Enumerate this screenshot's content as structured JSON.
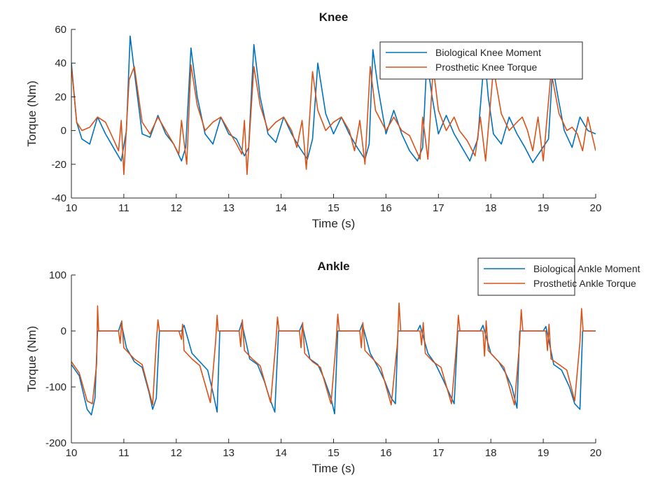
{
  "chart_data": [
    {
      "type": "line",
      "title": "Knee",
      "xlabel": "Time (s)",
      "ylabel": "Torque (Nm)",
      "xlim": [
        10,
        20
      ],
      "ylim": [
        -40,
        60
      ],
      "xticks": [
        10,
        11,
        12,
        13,
        14,
        15,
        16,
        17,
        18,
        19,
        20
      ],
      "yticks": [
        -40,
        -20,
        0,
        20,
        40,
        60
      ],
      "grid": false,
      "legend_position": "top-right",
      "series": [
        {
          "name": "Biological Knee Moment",
          "color": "#0072BD",
          "x": [
            10.0,
            10.1,
            10.2,
            10.35,
            10.5,
            10.65,
            10.8,
            10.95,
            11.05,
            11.12,
            11.22,
            11.35,
            11.5,
            11.65,
            11.8,
            11.95,
            12.1,
            12.18,
            12.28,
            12.4,
            12.55,
            12.7,
            12.85,
            13.0,
            13.15,
            13.3,
            13.38,
            13.48,
            13.6,
            13.75,
            13.9,
            14.05,
            14.2,
            14.35,
            14.5,
            14.6,
            14.7,
            14.85,
            15.0,
            15.15,
            15.3,
            15.45,
            15.6,
            15.68,
            15.75,
            15.85,
            16.0,
            16.15,
            16.3,
            16.45,
            16.6,
            16.7,
            16.78,
            16.88,
            17.0,
            17.15,
            17.3,
            17.45,
            17.6,
            17.75,
            17.88,
            17.95,
            18.05,
            18.2,
            18.35,
            18.5,
            18.65,
            18.8,
            18.95,
            19.1,
            19.18,
            19.28,
            19.4,
            19.55,
            19.7,
            19.85,
            20.0
          ],
          "y": [
            40,
            5,
            -5,
            -8,
            8,
            -2,
            -10,
            -18,
            0,
            56,
            30,
            -2,
            -4,
            9,
            -2,
            -8,
            -18,
            -10,
            49,
            20,
            -2,
            -8,
            8,
            -2,
            -5,
            -15,
            -10,
            51,
            20,
            -2,
            -7,
            8,
            -2,
            -10,
            -17,
            -5,
            40,
            10,
            -2,
            8,
            -2,
            -10,
            -17,
            -8,
            48,
            25,
            -2,
            12,
            -2,
            -12,
            -18,
            -10,
            42,
            20,
            -2,
            9,
            -2,
            -10,
            -18,
            -5,
            45,
            20,
            -2,
            -8,
            8,
            -2,
            -10,
            -19,
            -12,
            -5,
            38,
            20,
            0,
            -10,
            8,
            0,
            -2
          ]
        },
        {
          "name": "Prosthetic Knee Torque",
          "color": "#D95319",
          "x": [
            10.0,
            10.1,
            10.2,
            10.35,
            10.5,
            10.65,
            10.8,
            10.9,
            10.95,
            11.0,
            11.1,
            11.2,
            11.35,
            11.5,
            11.65,
            11.8,
            11.95,
            12.05,
            12.1,
            12.2,
            12.28,
            12.4,
            12.55,
            12.7,
            12.85,
            13.0,
            13.15,
            13.25,
            13.3,
            13.35,
            13.48,
            13.6,
            13.75,
            13.9,
            14.05,
            14.2,
            14.3,
            14.4,
            14.48,
            14.6,
            14.7,
            14.85,
            15.0,
            15.15,
            15.3,
            15.4,
            15.5,
            15.6,
            15.7,
            15.8,
            16.0,
            16.15,
            16.3,
            16.45,
            16.55,
            16.65,
            16.7,
            16.8,
            16.9,
            17.0,
            17.15,
            17.3,
            17.4,
            17.55,
            17.7,
            17.8,
            17.9,
            18.05,
            18.2,
            18.35,
            18.5,
            18.6,
            18.7,
            18.8,
            18.9,
            19.0,
            19.15,
            19.3,
            19.45,
            19.55,
            19.65,
            19.75,
            19.85,
            20.0
          ],
          "y": [
            38,
            5,
            0,
            2,
            8,
            5,
            -5,
            -12,
            6,
            -26,
            30,
            38,
            5,
            -2,
            8,
            0,
            -8,
            -14,
            6,
            -20,
            39,
            15,
            0,
            5,
            8,
            0,
            -8,
            -14,
            6,
            -26,
            38,
            15,
            0,
            5,
            8,
            0,
            -10,
            6,
            -23,
            35,
            12,
            0,
            5,
            8,
            0,
            -12,
            6,
            -20,
            38,
            12,
            0,
            8,
            0,
            -3,
            -10,
            -17,
            8,
            -17,
            38,
            12,
            0,
            8,
            0,
            -6,
            -15,
            8,
            -18,
            37,
            10,
            0,
            5,
            8,
            0,
            -12,
            8,
            -18,
            35,
            10,
            0,
            2,
            -2,
            -12,
            8,
            -12
          ]
        }
      ]
    },
    {
      "type": "line",
      "title": "Ankle",
      "xlabel": "Time (s)",
      "ylabel": "Torque (Nm)",
      "xlim": [
        10,
        20
      ],
      "ylim": [
        -200,
        100
      ],
      "xticks": [
        10,
        11,
        12,
        13,
        14,
        15,
        16,
        17,
        18,
        19,
        20
      ],
      "yticks": [
        -200,
        -100,
        0,
        100
      ],
      "grid": false,
      "legend_position": "top-right",
      "series": [
        {
          "name": "Biological Ankle Moment",
          "color": "#0072BD",
          "x": [
            10.0,
            10.15,
            10.3,
            10.38,
            10.45,
            10.5,
            10.9,
            10.95,
            11.05,
            11.2,
            11.35,
            11.48,
            11.55,
            11.62,
            11.68,
            12.1,
            12.15,
            12.3,
            12.45,
            12.6,
            12.7,
            12.78,
            12.83,
            13.2,
            13.25,
            13.4,
            13.55,
            13.68,
            13.78,
            13.88,
            13.95,
            14.35,
            14.4,
            14.55,
            14.7,
            14.82,
            14.95,
            15.02,
            15.08,
            15.5,
            15.55,
            15.7,
            15.85,
            15.98,
            16.1,
            16.18,
            16.23,
            16.6,
            16.65,
            16.8,
            16.95,
            17.08,
            17.2,
            17.3,
            17.37,
            17.8,
            17.85,
            18.0,
            18.15,
            18.28,
            18.4,
            18.5,
            18.55,
            19.0,
            19.05,
            19.2,
            19.35,
            19.5,
            19.6,
            19.7,
            19.75,
            20.0
          ],
          "y": [
            -60,
            -80,
            -140,
            -150,
            -120,
            0,
            0,
            15,
            -30,
            -55,
            -65,
            -110,
            -140,
            -120,
            0,
            0,
            10,
            -40,
            -55,
            -70,
            -110,
            -145,
            0,
            0,
            15,
            -50,
            -60,
            -90,
            -120,
            -145,
            0,
            0,
            12,
            -50,
            -60,
            -85,
            -120,
            -148,
            0,
            0,
            12,
            -40,
            -65,
            -90,
            -120,
            -130,
            0,
            0,
            10,
            -40,
            -60,
            -85,
            -110,
            -130,
            0,
            0,
            10,
            -40,
            -55,
            -75,
            -100,
            -138,
            0,
            0,
            8,
            -60,
            -70,
            -100,
            -130,
            -140,
            0,
            0
          ]
        },
        {
          "name": "Prosthetic Ankle Torque",
          "color": "#D95319",
          "x": [
            10.0,
            10.15,
            10.3,
            10.4,
            10.48,
            10.5,
            10.52,
            10.9,
            10.93,
            10.96,
            11.0,
            11.2,
            11.35,
            11.55,
            11.62,
            11.65,
            11.68,
            12.05,
            12.1,
            12.12,
            12.15,
            12.3,
            12.45,
            12.65,
            12.75,
            12.78,
            12.8,
            13.2,
            13.23,
            13.26,
            13.3,
            13.45,
            13.6,
            13.8,
            13.9,
            13.93,
            13.96,
            14.35,
            14.38,
            14.41,
            14.45,
            14.6,
            14.75,
            14.95,
            15.05,
            15.08,
            15.11,
            15.5,
            15.53,
            15.56,
            15.6,
            15.75,
            15.9,
            16.1,
            16.22,
            16.25,
            16.28,
            16.65,
            16.68,
            16.71,
            16.75,
            16.9,
            17.05,
            17.25,
            17.35,
            17.38,
            17.41,
            17.85,
            17.88,
            17.91,
            17.95,
            18.1,
            18.25,
            18.45,
            18.55,
            18.58,
            18.61,
            19.05,
            19.08,
            19.11,
            19.15,
            19.3,
            19.45,
            19.6,
            19.7,
            19.73,
            19.76,
            20.0
          ],
          "y": [
            -55,
            -75,
            -125,
            -130,
            -60,
            45,
            0,
            0,
            -22,
            18,
            -30,
            -50,
            -60,
            -132,
            -20,
            20,
            0,
            0,
            -15,
            12,
            -35,
            -50,
            -62,
            -128,
            -20,
            28,
            0,
            0,
            -28,
            20,
            -35,
            -50,
            -62,
            -128,
            -20,
            25,
            0,
            0,
            -30,
            15,
            -40,
            -55,
            -65,
            -130,
            -20,
            30,
            0,
            0,
            -30,
            15,
            -35,
            -50,
            -65,
            -132,
            -20,
            50,
            0,
            0,
            -25,
            15,
            -40,
            -55,
            -65,
            -130,
            -20,
            28,
            0,
            0,
            -45,
            18,
            -35,
            -50,
            -65,
            -132,
            -20,
            38,
            0,
            0,
            -35,
            12,
            -50,
            -60,
            -70,
            -125,
            -20,
            40,
            0,
            0
          ]
        }
      ]
    }
  ]
}
